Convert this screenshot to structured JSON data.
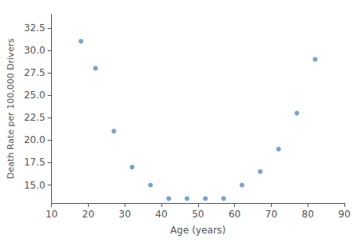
{
  "chart_data": {
    "type": "scatter",
    "x": [
      18,
      22,
      27,
      32,
      37,
      42,
      47,
      52,
      57,
      62,
      67,
      72,
      77,
      82
    ],
    "values": [
      31.0,
      28.0,
      21.0,
      17.0,
      15.0,
      13.5,
      13.5,
      13.5,
      13.5,
      15.0,
      16.5,
      19.0,
      23.0,
      29.0
    ],
    "xlabel": "Age (years)",
    "ylabel": "Death Rate per 100,000 Drivers",
    "xlim": [
      10,
      90
    ],
    "ylim": [
      13.0,
      34.0
    ],
    "xticks": [
      10,
      20,
      30,
      40,
      50,
      60,
      70,
      80,
      90
    ],
    "yticks": [
      {
        "value": 15.0,
        "label": "15.0"
      },
      17.5,
      {
        "value": 20.0,
        "label": "20.0"
      },
      22.5,
      {
        "value": 25.0,
        "label": "25.0"
      },
      27.5,
      {
        "value": 30.0,
        "label": "30.0"
      },
      32.5
    ],
    "color": "#5b8db8",
    "grid": false
  }
}
